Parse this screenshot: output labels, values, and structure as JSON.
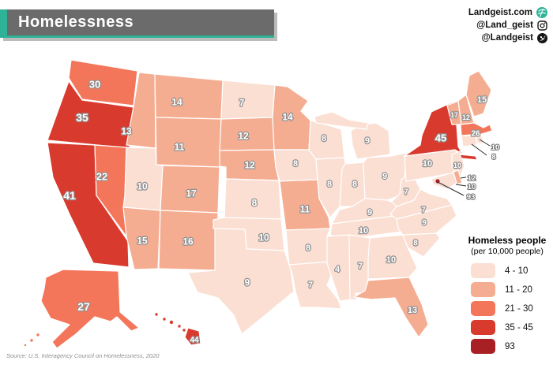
{
  "title": "Homelessness",
  "branding": {
    "website": "Landgeist.com",
    "instagram": "@Land_geist",
    "twitter": "@Landgeist"
  },
  "source": "Source: U.S. Interagency Council on Homelessness, 2020",
  "accent_color": "#2eb398",
  "titlebar_color": "#6b6b6b",
  "border_color": "#ffffff",
  "legend": {
    "title": "Homeless people",
    "subtitle": "(per 10,000 people)",
    "buckets": [
      {
        "label": "4 - 10",
        "max": 10,
        "color": "#fbdfd3"
      },
      {
        "label": "11 - 20",
        "max": 20,
        "color": "#f5ad92"
      },
      {
        "label": "21 - 30",
        "max": 30,
        "color": "#f4765a"
      },
      {
        "label": "35 - 45",
        "max": 45,
        "color": "#d93a2e"
      },
      {
        "label": "93",
        "max": 999,
        "color": "#a81f24"
      }
    ]
  },
  "map": {
    "unit": "homeless people per 10,000 people",
    "states": [
      {
        "id": "WA",
        "value": 30
      },
      {
        "id": "OR",
        "value": 35
      },
      {
        "id": "CA",
        "value": 41
      },
      {
        "id": "NV",
        "value": 22
      },
      {
        "id": "ID",
        "value": 13
      },
      {
        "id": "UT",
        "value": 10
      },
      {
        "id": "AZ",
        "value": 15
      },
      {
        "id": "MT",
        "value": 14
      },
      {
        "id": "WY",
        "value": 11
      },
      {
        "id": "CO",
        "value": 17
      },
      {
        "id": "NM",
        "value": 16
      },
      {
        "id": "ND",
        "value": 7
      },
      {
        "id": "SD",
        "value": 12
      },
      {
        "id": "NE",
        "value": 12
      },
      {
        "id": "KS",
        "value": 8
      },
      {
        "id": "OK",
        "value": 10
      },
      {
        "id": "TX",
        "value": 9
      },
      {
        "id": "MN",
        "value": 14
      },
      {
        "id": "IA",
        "value": 8
      },
      {
        "id": "MO",
        "value": 11
      },
      {
        "id": "AR",
        "value": 8
      },
      {
        "id": "LA",
        "value": 7
      },
      {
        "id": "WI",
        "value": 8
      },
      {
        "id": "IL",
        "value": 8
      },
      {
        "id": "MI",
        "value": 9
      },
      {
        "id": "IN",
        "value": 8
      },
      {
        "id": "OH",
        "value": 9
      },
      {
        "id": "KY",
        "value": 9
      },
      {
        "id": "TN",
        "value": 10
      },
      {
        "id": "MS",
        "value": 4
      },
      {
        "id": "AL",
        "value": 7
      },
      {
        "id": "GA",
        "value": 10
      },
      {
        "id": "FL",
        "value": 13
      },
      {
        "id": "SC",
        "value": 8
      },
      {
        "id": "NC",
        "value": 9
      },
      {
        "id": "VA",
        "value": 7
      },
      {
        "id": "WV",
        "value": 7
      },
      {
        "id": "PA",
        "value": 10
      },
      {
        "id": "NY",
        "value": 45
      },
      {
        "id": "NJ",
        "value": 10
      },
      {
        "id": "DE",
        "value": 12
      },
      {
        "id": "MD",
        "value": 10
      },
      {
        "id": "DC",
        "value": 93
      },
      {
        "id": "VT",
        "value": 17
      },
      {
        "id": "NH",
        "value": 12
      },
      {
        "id": "ME",
        "value": 15
      },
      {
        "id": "MA",
        "value": 26
      },
      {
        "id": "RI",
        "value": 10
      },
      {
        "id": "CT",
        "value": 8
      },
      {
        "id": "AK",
        "value": 27
      },
      {
        "id": "HI",
        "value": 44
      }
    ]
  }
}
